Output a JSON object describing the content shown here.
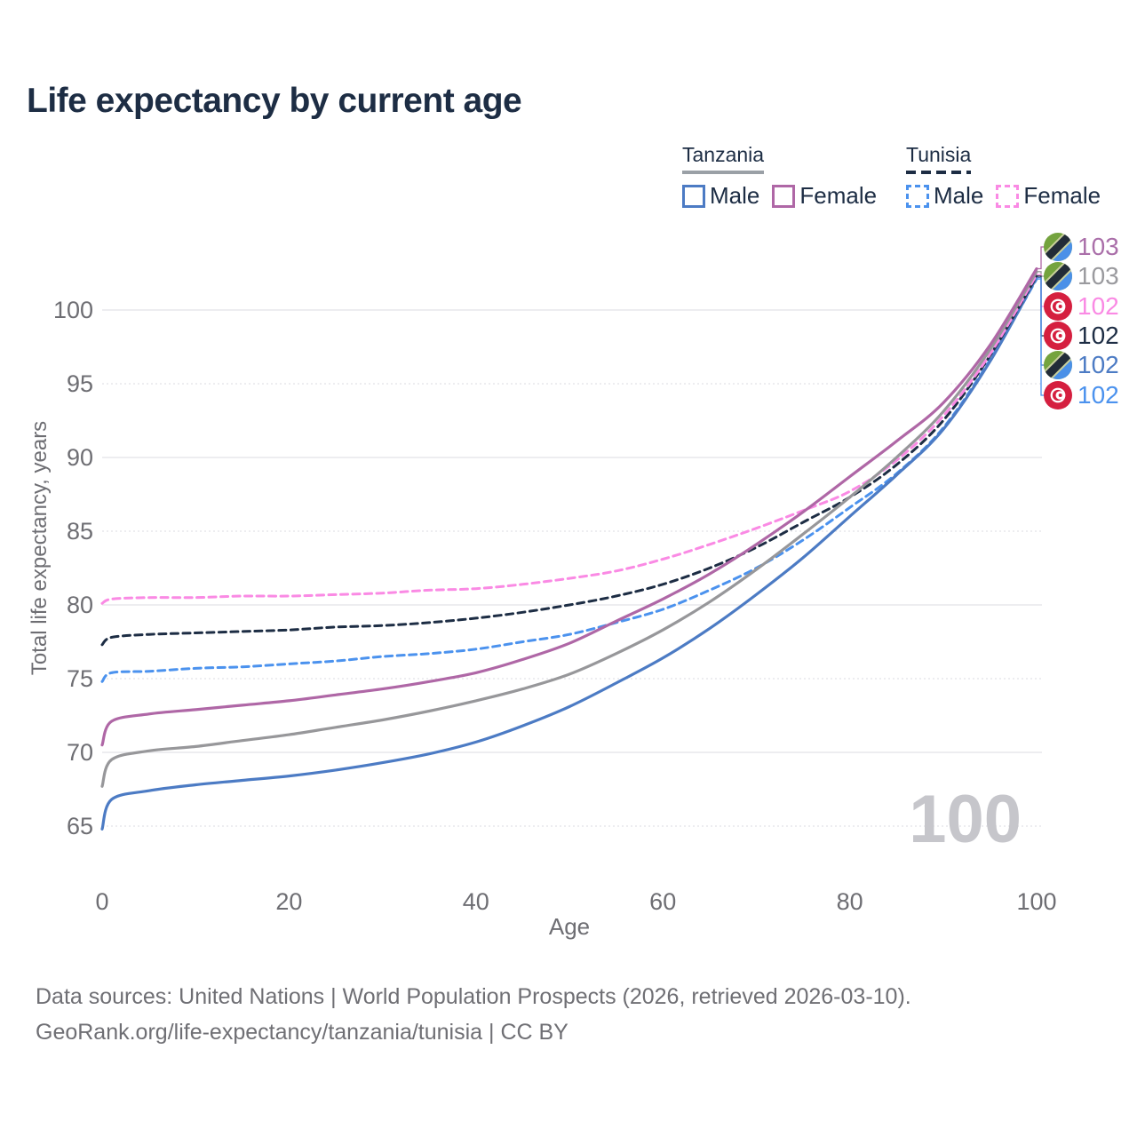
{
  "page_title": "Life expectancy by current age",
  "legend": {
    "groups": [
      {
        "label": "Tanzania",
        "line_style": "solid",
        "underline_color": "#9aa0a6",
        "items": [
          {
            "label": "Male",
            "color": "#4c7bc4"
          },
          {
            "label": "Female",
            "color": "#af67a6"
          }
        ]
      },
      {
        "label": "Tunisia",
        "line_style": "dashed",
        "underline_color": "#1d2d44",
        "items": [
          {
            "label": "Male",
            "color": "#4b92ee"
          },
          {
            "label": "Female",
            "color": "#fa8ae4"
          }
        ]
      }
    ]
  },
  "watermark_age": "100",
  "footer": {
    "line1": "Data sources: United Nations | World Population Prospects (2026, retrieved 2026-03-10).",
    "line2": "GeoRank.org/life-expectancy/tanzania/tunisia | CC BY"
  },
  "chart_data": {
    "type": "line",
    "title": "Life expectancy by current age",
    "xlabel": "Age",
    "ylabel": "Total life expectancy, years",
    "xlim": [
      0,
      100
    ],
    "ylim": [
      63.5,
      104
    ],
    "x_ticks": [
      0,
      20,
      40,
      60,
      80,
      100
    ],
    "y_ticks": [
      65,
      70,
      75,
      80,
      85,
      90,
      95,
      100
    ],
    "grid": "horizontal",
    "legend_position": "top-right",
    "ages": [
      0,
      1,
      5,
      10,
      15,
      20,
      25,
      30,
      35,
      40,
      45,
      50,
      55,
      60,
      65,
      70,
      75,
      80,
      85,
      90,
      95,
      100
    ],
    "series": [
      {
        "name": "Tanzania Female",
        "country": "Tanzania",
        "sex": "Female",
        "dash": "solid",
        "color": "#af67a6",
        "flag": "tanzania",
        "end_label": "103",
        "end_label_color": "#aa6fa9",
        "values": [
          70.5,
          72.1,
          72.6,
          72.9,
          73.2,
          73.5,
          73.9,
          74.3,
          74.8,
          75.4,
          76.3,
          77.4,
          78.9,
          80.4,
          82.1,
          84.1,
          86.3,
          88.7,
          91.1,
          93.7,
          97.6,
          102.8
        ]
      },
      {
        "name": "Tanzania Both sexes",
        "country": "Tanzania",
        "sex": "Both sexes",
        "dash": "solid",
        "color": "#97979a",
        "flag": "tanzania",
        "end_label": "103",
        "end_label_color": "#9a9a9e",
        "values": [
          67.7,
          69.5,
          70.1,
          70.4,
          70.8,
          71.2,
          71.7,
          72.2,
          72.8,
          73.5,
          74.3,
          75.3,
          76.7,
          78.3,
          80.2,
          82.4,
          84.8,
          87.3,
          90.0,
          93.1,
          97.3,
          102.6
        ]
      },
      {
        "name": "Tunisia Female",
        "country": "Tunisia",
        "sex": "Female",
        "dash": "dashed",
        "color": "#fa8ae4",
        "flag": "tunisia",
        "end_label": "102",
        "end_label_color": "#fa8ae4",
        "values": [
          80.1,
          80.4,
          80.5,
          80.5,
          80.6,
          80.6,
          80.7,
          80.8,
          81.0,
          81.1,
          81.4,
          81.8,
          82.3,
          83.1,
          84.1,
          85.2,
          86.4,
          87.7,
          89.8,
          92.8,
          97.0,
          102.4
        ]
      },
      {
        "name": "Tunisia Both sexes",
        "country": "Tunisia",
        "sex": "Both sexes",
        "dash": "dashed",
        "color": "#1d2d44",
        "flag": "tunisia",
        "end_label": "102",
        "end_label_color": "#1d2d44",
        "values": [
          77.3,
          77.8,
          78.0,
          78.1,
          78.2,
          78.3,
          78.5,
          78.6,
          78.8,
          79.1,
          79.5,
          80.0,
          80.6,
          81.4,
          82.5,
          83.9,
          85.6,
          87.3,
          89.5,
          92.5,
          96.9,
          102.3
        ]
      },
      {
        "name": "Tanzania Male",
        "country": "Tanzania",
        "sex": "Male",
        "dash": "solid",
        "color": "#4c7bc4",
        "flag": "tanzania",
        "end_label": "102",
        "end_label_color": "#4c7bc4",
        "values": [
          64.8,
          66.8,
          67.4,
          67.8,
          68.1,
          68.4,
          68.8,
          69.3,
          69.9,
          70.7,
          71.8,
          73.1,
          74.7,
          76.4,
          78.4,
          80.7,
          83.2,
          86.0,
          88.8,
          91.9,
          96.5,
          102.2
        ]
      },
      {
        "name": "Tunisia Male",
        "country": "Tunisia",
        "sex": "Male",
        "dash": "dashed",
        "color": "#4b92ee",
        "flag": "tunisia",
        "end_label": "102",
        "end_label_color": "#4b92ee",
        "values": [
          74.8,
          75.4,
          75.5,
          75.7,
          75.8,
          76.0,
          76.2,
          76.5,
          76.7,
          77.0,
          77.5,
          78.0,
          78.8,
          79.7,
          81.0,
          82.5,
          84.4,
          86.6,
          88.9,
          92.0,
          96.6,
          102.1
        ]
      }
    ],
    "annotations": {
      "age_counter_watermark": "100"
    }
  }
}
